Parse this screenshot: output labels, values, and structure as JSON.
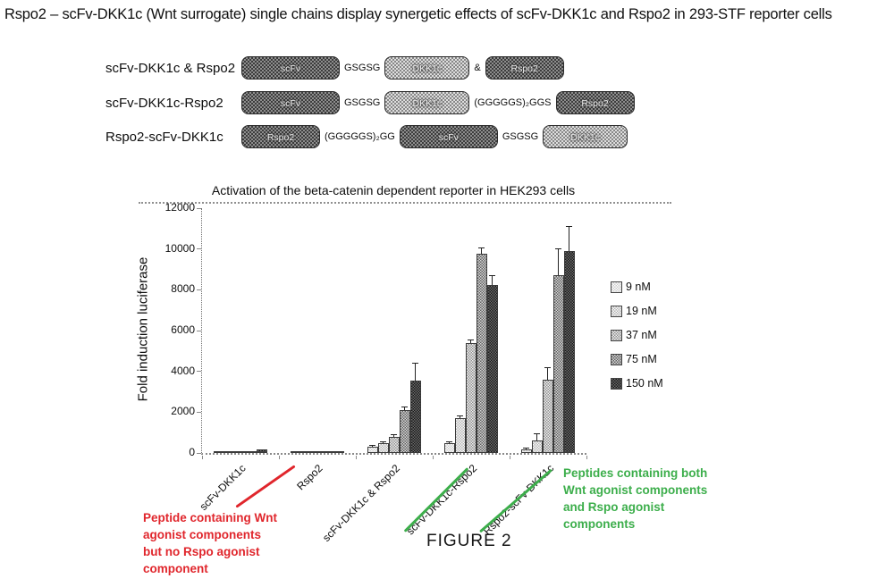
{
  "title": "Rspo2 – scFv-DKK1c (Wnt surrogate) single chains display synergetic effects of scFv-DKK1c and Rspo2 in 293-STF reporter cells",
  "colors": {
    "red_annotation": "#e0262c",
    "green_annotation": "#3cae4b"
  },
  "constructs": {
    "rows": [
      {
        "label": "scFv-DKK1c & Rspo2",
        "segments": [
          {
            "kind": "box-dark",
            "text": "scFv"
          },
          {
            "kind": "linker",
            "text": "GSGSG"
          },
          {
            "kind": "box-light",
            "text": "DKK1c"
          },
          {
            "kind": "linker",
            "text": "&"
          },
          {
            "kind": "box-dark",
            "text": "Rspo2"
          }
        ]
      },
      {
        "label": "scFv-DKK1c-Rspo2",
        "segments": [
          {
            "kind": "box-dark",
            "text": "scFv"
          },
          {
            "kind": "linker",
            "text": "GSGSG"
          },
          {
            "kind": "box-light",
            "text": "DKK1c"
          },
          {
            "kind": "linker",
            "text": "(GGGGGS)₂GGS"
          },
          {
            "kind": "box-dark",
            "text": "Rspo2"
          }
        ]
      },
      {
        "label": "Rspo2-scFv-DKK1c",
        "segments": [
          {
            "kind": "box-dark",
            "text": "Rspo2"
          },
          {
            "kind": "linker",
            "text": "(GGGGGS)₂GG"
          },
          {
            "kind": "box-dark",
            "text": "scFv"
          },
          {
            "kind": "linker",
            "text": "GSGSG"
          },
          {
            "kind": "box-light",
            "text": "DKK1c"
          }
        ]
      }
    ]
  },
  "chart_data": {
    "type": "bar",
    "title": "Activation of the beta-catenin dependent reporter in HEK293 cells",
    "xlabel": "",
    "ylabel": "Fold induction luciferase",
    "ylim": [
      0,
      12000
    ],
    "yticks": [
      0,
      2000,
      4000,
      6000,
      8000,
      10000,
      12000
    ],
    "grid": false,
    "legend_position": "right",
    "categories": [
      "scFv-DKK1c",
      "Rspo2",
      "scFv-DKK1c & Rspo2",
      "scFv-DKK1c-Rspo2",
      "Rspo2-scFv-DKK1c"
    ],
    "series": [
      {
        "name": "9 nM",
        "values": [
          20,
          40,
          310,
          480,
          170
        ],
        "errors": [
          0,
          0,
          40,
          60,
          40
        ]
      },
      {
        "name": "19 nM",
        "values": [
          25,
          55,
          500,
          1700,
          620
        ],
        "errors": [
          0,
          0,
          50,
          90,
          310
        ]
      },
      {
        "name": "37 nM",
        "values": [
          35,
          70,
          780,
          5400,
          3600
        ],
        "errors": [
          0,
          0,
          70,
          150,
          560
        ]
      },
      {
        "name": "75 nM",
        "values": [
          45,
          90,
          2100,
          9750,
          8700
        ],
        "errors": [
          0,
          0,
          130,
          250,
          1290
        ]
      },
      {
        "name": "150 nM",
        "values": [
          170,
          95,
          3550,
          8250,
          9900
        ],
        "errors": [
          0,
          0,
          820,
          430,
          1200
        ]
      }
    ]
  },
  "annotations": {
    "red": "Peptide containing Wnt\nagonist components\nbut no Rspo agonist\ncomponent",
    "green": "Peptides containing both\nWnt agonist components\nand Rspo agonist\ncomponents"
  },
  "figure_caption": "FIGURE 2"
}
